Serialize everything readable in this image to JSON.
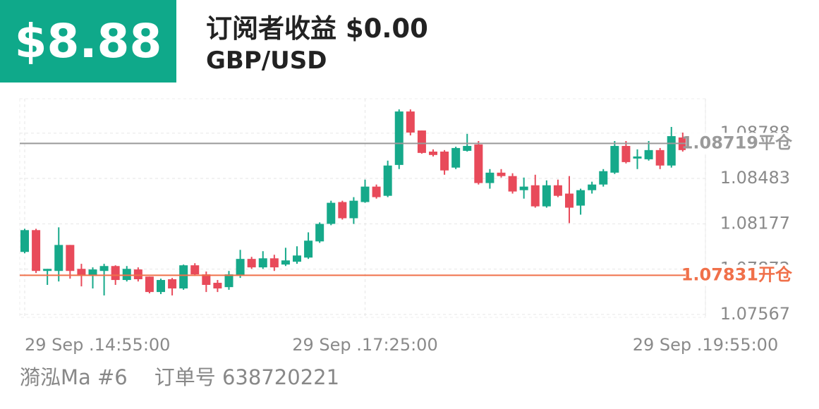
{
  "header": {
    "balance": "$8.88",
    "title": "订阅者收益 $0.00",
    "symbol": "GBP/USD"
  },
  "footer": {
    "account": "漪泓Ma #6",
    "order": "订单号 638720221"
  },
  "chart_data": {
    "type": "candlestick",
    "up_color": "#16a98a",
    "down_color": "#e84a5a",
    "grid": true,
    "x": [
      0,
      1,
      2,
      3,
      4,
      5,
      6,
      7,
      8,
      9,
      10,
      11,
      12,
      13,
      14,
      15,
      16,
      17,
      18,
      19,
      20,
      21,
      22,
      23,
      24,
      25,
      26,
      27,
      28,
      29,
      30,
      31,
      32,
      33,
      34,
      35,
      36,
      37,
      38,
      39,
      40,
      41,
      42,
      43,
      44,
      45,
      46,
      47,
      48,
      49,
      50,
      51,
      52,
      53,
      54,
      55,
      56,
      57,
      58
    ],
    "open": [
      1.07988,
      1.08135,
      1.0786,
      1.0786,
      1.08035,
      1.07874,
      1.07827,
      1.0786,
      1.07893,
      1.07799,
      1.0787,
      1.07822,
      1.07718,
      1.07804,
      1.07742,
      1.07898,
      1.07837,
      1.0778,
      1.07751,
      1.07827,
      1.07941,
      1.07884,
      1.07945,
      1.07903,
      1.07922,
      1.0795,
      1.08059,
      1.08177,
      1.08324,
      1.08215,
      1.08324,
      1.08428,
      1.08366,
      1.08574,
      1.08934,
      1.08806,
      1.08664,
      1.08664,
      1.08556,
      1.08669,
      1.08712,
      1.08452,
      1.08522,
      1.08499,
      1.08404,
      1.08437,
      1.08295,
      1.08437,
      1.08381,
      1.083,
      1.08404,
      1.08442,
      1.08522,
      1.08702,
      1.08617,
      1.08612,
      1.08674,
      1.0857,
      1.08759
    ],
    "high": [
      1.08144,
      1.08144,
      1.07874,
      1.08154,
      1.08035,
      1.07908,
      1.07884,
      1.07908,
      1.07898,
      1.07893,
      1.07884,
      1.07822,
      1.07808,
      1.07813,
      1.07903,
      1.07912,
      1.07856,
      1.07799,
      1.0786,
      1.08002,
      1.07955,
      1.07993,
      1.07969,
      1.08016,
      1.08026,
      1.0812,
      1.08187,
      1.08333,
      1.08333,
      1.08357,
      1.08475,
      1.08442,
      1.08603,
      1.08948,
      1.08948,
      1.08806,
      1.08679,
      1.08674,
      1.08697,
      1.08783,
      1.08735,
      1.08546,
      1.08546,
      1.08518,
      1.08489,
      1.08508,
      1.0847,
      1.08475,
      1.08499,
      1.08414,
      1.08461,
      1.08546,
      1.08735,
      1.08735,
      1.08679,
      1.08735,
      1.08688,
      1.0883,
      1.08792
    ],
    "low": [
      1.07979,
      1.07846,
      1.07766,
      1.07789,
      1.07808,
      1.07756,
      1.07742,
      1.07695,
      1.07766,
      1.07789,
      1.07789,
      1.07709,
      1.07704,
      1.07695,
      1.07733,
      1.07827,
      1.07718,
      1.07718,
      1.07733,
      1.07813,
      1.07874,
      1.07874,
      1.0786,
      1.07893,
      1.07908,
      1.07941,
      1.08049,
      1.08168,
      1.08206,
      1.08177,
      1.08319,
      1.08347,
      1.08357,
      1.08546,
      1.08773,
      1.0865,
      1.08631,
      1.08508,
      1.08546,
      1.08664,
      1.08442,
      1.08414,
      1.08489,
      1.08381,
      1.08347,
      1.08286,
      1.08286,
      1.08357,
      1.08182,
      1.08239,
      1.08381,
      1.08428,
      1.08513,
      1.08584,
      1.08546,
      1.08603,
      1.08546,
      1.08556,
      1.08664
    ],
    "close": [
      1.08135,
      1.0786,
      1.07874,
      1.08035,
      1.0786,
      1.07827,
      1.0787,
      1.07893,
      1.07799,
      1.07874,
      1.07804,
      1.07718,
      1.07799,
      1.07742,
      1.07898,
      1.07837,
      1.07766,
      1.07742,
      1.07837,
      1.07941,
      1.07884,
      1.07945,
      1.07884,
      1.07931,
      1.07964,
      1.08064,
      1.08177,
      1.08319,
      1.08215,
      1.08333,
      1.08428,
      1.08357,
      1.0857,
      1.08934,
      1.08792,
      1.08655,
      1.08641,
      1.08537,
      1.08688,
      1.08702,
      1.08452,
      1.08522,
      1.08499,
      1.08395,
      1.08428,
      1.08295,
      1.08437,
      1.08366,
      1.08286,
      1.08404,
      1.08442,
      1.08532,
      1.08702,
      1.08593,
      1.08631,
      1.08674,
      1.0857,
      1.08768,
      1.08674
    ],
    "xlim": [
      0,
      60
    ],
    "xticks": [
      {
        "value": 0,
        "label": "29 Sep .14:55:00"
      },
      {
        "value": 30,
        "label": "29 Sep .17:25:00"
      },
      {
        "value": 60,
        "label": "29 Sep .19:55:00"
      }
    ],
    "ylim": [
      1.075,
      1.0902
    ],
    "yticks": [
      1.07567,
      1.07872,
      1.08177,
      1.08483,
      1.08788
    ],
    "reference_lines": [
      {
        "price": 1.08719,
        "label": "平仓",
        "color": "#9a9a9a"
      },
      {
        "price": 1.07831,
        "label": "开仓",
        "color": "#f0704a"
      }
    ]
  }
}
